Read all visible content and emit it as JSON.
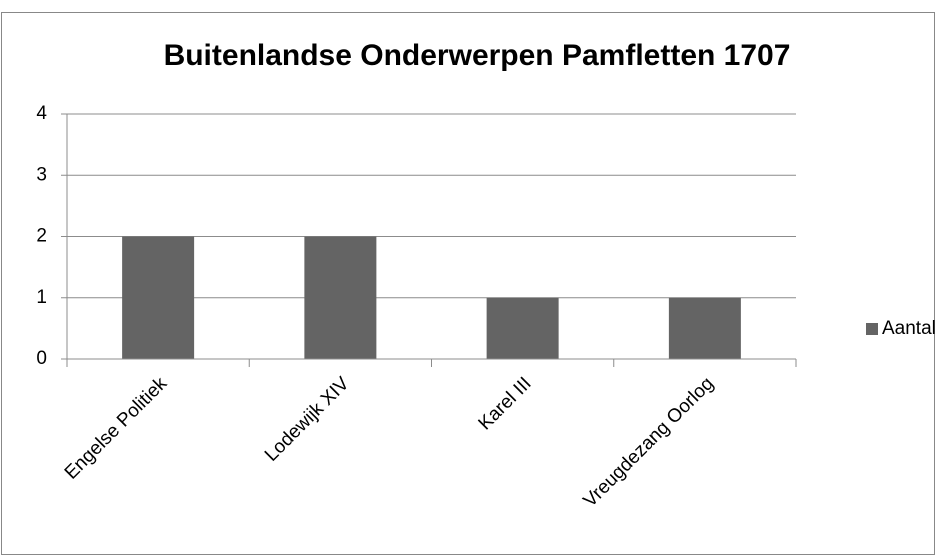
{
  "chart_data": {
    "type": "bar",
    "title": "Buitenlandse Onderwerpen Pamfletten 1707",
    "categories": [
      "Engelse Politiek",
      "Lodewijk XIV",
      "Karel III",
      "Vreugdezang Oorlog"
    ],
    "series": [
      {
        "name": "Aantal",
        "color": "#646464",
        "values": [
          2,
          2,
          1,
          1
        ]
      }
    ],
    "ylim": [
      0,
      4
    ],
    "yticks": [
      0,
      1,
      2,
      3,
      4
    ],
    "grid": true,
    "legend": "right"
  }
}
